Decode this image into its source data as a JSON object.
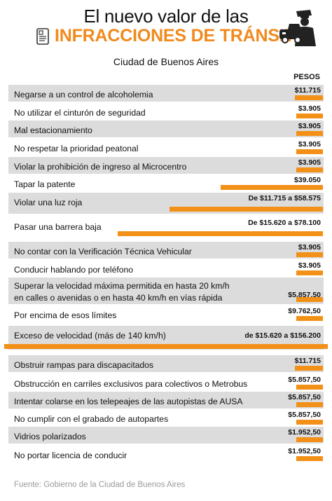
{
  "header": {
    "title_line1": "El nuevo valor de las",
    "title_line2": "INFRACCIONES DE TRÁNSITO",
    "subtitle": "Ciudad de Buenos Aires",
    "accent_color": "#f08a1d",
    "icons": [
      "document-icon",
      "police-officer-car-icon"
    ]
  },
  "column_header": "PESOS",
  "source": "Fuente: Gobierno de la Ciudad de Buenos Aires",
  "chart_data": {
    "type": "bar",
    "orientation": "horizontal",
    "title": "El nuevo valor de las INFRACCIONES DE TRÁNSITO",
    "subtitle": "Ciudad de Buenos Aires",
    "unit": "PESOS",
    "bar_color": "#f39017",
    "max_value": 156200,
    "rows": [
      {
        "label": "Negarse a un control de alcoholemia",
        "value_text": "$11.715",
        "value": 11715
      },
      {
        "label": "No utilizar el cinturón de seguridad",
        "value_text": "$3.905",
        "value": 3905
      },
      {
        "label": "Mal estacionamiento",
        "value_text": "$3.905",
        "value": 3905
      },
      {
        "label": "No respetar la prioridad peatonal",
        "value_text": "$3.905",
        "value": 3905
      },
      {
        "label": "Violar la prohibición de ingreso al Microcentro",
        "value_text": "$3.905",
        "value": 3905
      },
      {
        "label": "Tapar la patente",
        "value_text": "$39.050",
        "value": 39050
      },
      {
        "label": "Violar una luz roja",
        "value_text": "De $11.715 a $58.575",
        "value": 58575
      },
      {
        "label": "Pasar una barrera baja",
        "value_text": "De $15.620 a $78.100",
        "value": 78100
      },
      {
        "label": "No contar con la Verificación Técnica Vehicular",
        "value_text": "$3.905",
        "value": 3905
      },
      {
        "label": "Conducir hablando por teléfono",
        "value_text": "$3.905",
        "value": 3905
      },
      {
        "label": "Superar la velocidad máxima permitida en hasta 20 km/h\nen calles o avenidas o en hasta 40 km/h en vías rápida",
        "value_text": "$5.857,50",
        "value": 5857.5
      },
      {
        "label": "Por encima de esos límites",
        "value_text": "$9.762,50",
        "value": 9762.5
      },
      {
        "label": "Exceso de velocidad (más de 140 km/h)",
        "value_text": "de $15.620 a $156.200",
        "value": 156200
      },
      {
        "label": "Obstruir rampas para discapacitados",
        "value_text": "$11.715",
        "value": 11715
      },
      {
        "label": "Obstrucción en carriles exclusivos para colectivos o Metrobus",
        "value_text": "$5.857,50",
        "value": 5857.5
      },
      {
        "label": "Intentar colarse en los telepeajes de las autopistas de AUSA",
        "value_text": "$5.857,50",
        "value": 5857.5
      },
      {
        "label": "No cumplir con el grabado de autopartes",
        "value_text": "$5.857,50",
        "value": 5857.5
      },
      {
        "label": "Vidrios polarizados",
        "value_text": "$1.952,50",
        "value": 1952.5
      },
      {
        "label": "No portar licencia de conducir",
        "value_text": "$1.952,50",
        "value": 1952.5
      }
    ]
  }
}
